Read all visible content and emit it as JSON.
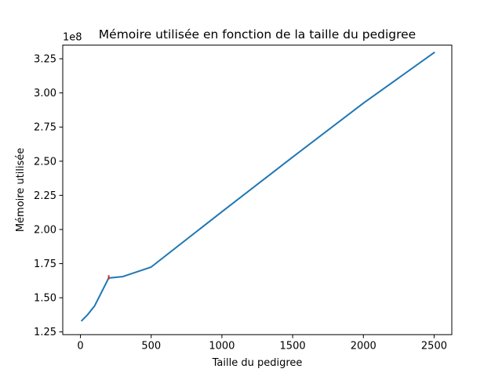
{
  "chart_data": {
    "type": "line",
    "title": "Mémoire utilisée en fonction de la taille du pedigree",
    "xlabel": "Taille du pedigree",
    "ylabel": "Mémoire utilisée",
    "y_offset_label": "1e8",
    "xlim": [
      -125,
      2625
    ],
    "ylim": [
      1.23,
      3.35
    ],
    "x_ticks": [
      0,
      500,
      1000,
      1500,
      2000,
      2500
    ],
    "x_tick_labels": [
      "0",
      "500",
      "1000",
      "1500",
      "2000",
      "2500"
    ],
    "y_ticks": [
      1.25,
      1.5,
      1.75,
      2.0,
      2.25,
      2.5,
      2.75,
      3.0,
      3.25
    ],
    "y_tick_labels": [
      "1.25",
      "1.50",
      "1.75",
      "2.00",
      "2.25",
      "2.50",
      "2.75",
      "3.00",
      "3.25"
    ],
    "grid": false,
    "series": [
      {
        "color": "#1f77b4",
        "x": [
          10,
          50,
          100,
          200,
          300,
          500,
          1000,
          1500,
          2000,
          2500
        ],
        "y": [
          1.333,
          1.375,
          1.44,
          1.645,
          1.655,
          1.725,
          2.13,
          2.53,
          2.925,
          3.295
        ]
      }
    ],
    "error_bars": [
      {
        "x": 200,
        "y_low": 1.635,
        "y_high": 1.665,
        "color": "#d62728"
      }
    ]
  }
}
